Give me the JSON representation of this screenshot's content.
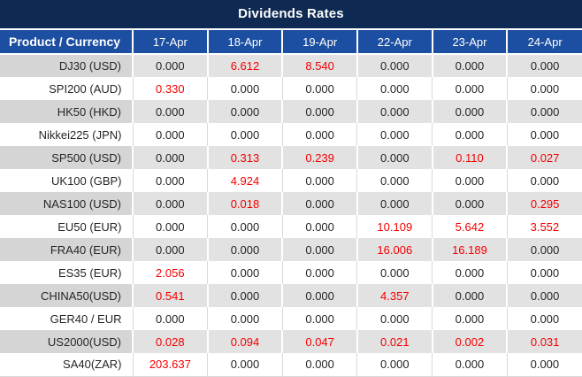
{
  "title": "Dividends Rates",
  "chart_data": {
    "type": "table",
    "title": "Dividends Rates",
    "columns": [
      "Product / Currency",
      "17-Apr",
      "18-Apr",
      "19-Apr",
      "22-Apr",
      "23-Apr",
      "24-Apr"
    ],
    "rows": [
      {
        "product": "DJ30 (USD)",
        "values": [
          "0.000",
          "6.612",
          "8.540",
          "0.000",
          "0.000",
          "0.000"
        ],
        "red": [
          false,
          true,
          true,
          false,
          false,
          false
        ]
      },
      {
        "product": "SPI200 (AUD)",
        "values": [
          "0.330",
          "0.000",
          "0.000",
          "0.000",
          "0.000",
          "0.000"
        ],
        "red": [
          true,
          false,
          false,
          false,
          false,
          false
        ]
      },
      {
        "product": "HK50 (HKD)",
        "values": [
          "0.000",
          "0.000",
          "0.000",
          "0.000",
          "0.000",
          "0.000"
        ],
        "red": [
          false,
          false,
          false,
          false,
          false,
          false
        ]
      },
      {
        "product": "Nikkei225 (JPN)",
        "values": [
          "0.000",
          "0.000",
          "0.000",
          "0.000",
          "0.000",
          "0.000"
        ],
        "red": [
          false,
          false,
          false,
          false,
          false,
          false
        ]
      },
      {
        "product": "SP500 (USD)",
        "values": [
          "0.000",
          "0.313",
          "0.239",
          "0.000",
          "0.110",
          "0.027"
        ],
        "red": [
          false,
          true,
          true,
          false,
          true,
          true
        ]
      },
      {
        "product": "UK100 (GBP)",
        "values": [
          "0.000",
          "4.924",
          "0.000",
          "0.000",
          "0.000",
          "0.000"
        ],
        "red": [
          false,
          true,
          false,
          false,
          false,
          false
        ]
      },
      {
        "product": "NAS100 (USD)",
        "values": [
          "0.000",
          "0.018",
          "0.000",
          "0.000",
          "0.000",
          "0.295"
        ],
        "red": [
          false,
          true,
          false,
          false,
          false,
          true
        ]
      },
      {
        "product": "EU50 (EUR)",
        "values": [
          "0.000",
          "0.000",
          "0.000",
          "10.109",
          "5.642",
          "3.552"
        ],
        "red": [
          false,
          false,
          false,
          true,
          true,
          true
        ]
      },
      {
        "product": "FRA40 (EUR)",
        "values": [
          "0.000",
          "0.000",
          "0.000",
          "16.006",
          "16.189",
          "0.000"
        ],
        "red": [
          false,
          false,
          false,
          true,
          true,
          false
        ]
      },
      {
        "product": "ES35 (EUR)",
        "values": [
          "2.056",
          "0.000",
          "0.000",
          "0.000",
          "0.000",
          "0.000"
        ],
        "red": [
          true,
          false,
          false,
          false,
          false,
          false
        ]
      },
      {
        "product": "CHINA50(USD)",
        "values": [
          "0.541",
          "0.000",
          "0.000",
          "4.357",
          "0.000",
          "0.000"
        ],
        "red": [
          true,
          false,
          false,
          true,
          false,
          false
        ]
      },
      {
        "product": "GER40 / EUR",
        "values": [
          "0.000",
          "0.000",
          "0.000",
          "0.000",
          "0.000",
          "0.000"
        ],
        "red": [
          false,
          false,
          false,
          false,
          false,
          false
        ]
      },
      {
        "product": "US2000(USD)",
        "values": [
          "0.028",
          "0.094",
          "0.047",
          "0.021",
          "0.002",
          "0.031"
        ],
        "red": [
          true,
          true,
          true,
          true,
          true,
          true
        ]
      },
      {
        "product": "SA40(ZAR)",
        "values": [
          "203.637",
          "0.000",
          "0.000",
          "0.000",
          "0.000",
          "0.000"
        ],
        "red": [
          true,
          false,
          false,
          false,
          false,
          false
        ]
      }
    ]
  },
  "colors": {
    "title_bg": "#0e2a52",
    "header_bg": "#1c4fa1",
    "alt_row_product_bg": "#d5d5d5",
    "alt_row_value_bg": "#e2e2e2",
    "white_row_bg": "#ffffff",
    "text_dark": "#262626",
    "highlight_red": "#f50000",
    "grid_light": "#d9d9d9"
  }
}
